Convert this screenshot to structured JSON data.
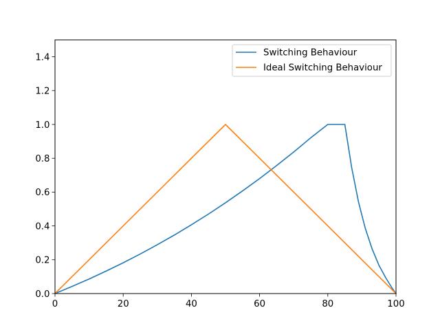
{
  "chart_data": {
    "type": "line",
    "title": "",
    "xlabel": "",
    "ylabel": "",
    "xlim": [
      0,
      100
    ],
    "ylim": [
      0,
      1.5
    ],
    "xticks": [
      0,
      20,
      40,
      60,
      80,
      100
    ],
    "xtick_labels": [
      "0",
      "20",
      "40",
      "60",
      "80",
      "100"
    ],
    "yticks": [
      0.0,
      0.2,
      0.4,
      0.6,
      0.8,
      1.0,
      1.2,
      1.4
    ],
    "ytick_labels": [
      "0.0",
      "0.2",
      "0.4",
      "0.6",
      "0.8",
      "1.0",
      "1.2",
      "1.4"
    ],
    "grid": false,
    "legend_position": "top-right",
    "series": [
      {
        "name": "Switching Behaviour",
        "color": "#1f77b4",
        "x": [
          0,
          5,
          10,
          15,
          20,
          25,
          30,
          35,
          40,
          45,
          50,
          55,
          60,
          65,
          70,
          75,
          80,
          85,
          87,
          89,
          91,
          93,
          95,
          97,
          99,
          100
        ],
        "y": [
          0.0,
          0.042,
          0.086,
          0.133,
          0.182,
          0.234,
          0.289,
          0.346,
          0.407,
          0.47,
          0.537,
          0.607,
          0.68,
          0.757,
          0.837,
          0.921,
          1.0,
          1.0,
          0.745,
          0.542,
          0.385,
          0.264,
          0.167,
          0.093,
          0.028,
          0.0
        ]
      },
      {
        "name": "Ideal Switching Behaviour",
        "color": "#ff7f0e",
        "x": [
          0,
          50,
          100
        ],
        "y": [
          0.0,
          1.0,
          0.0
        ]
      }
    ]
  }
}
